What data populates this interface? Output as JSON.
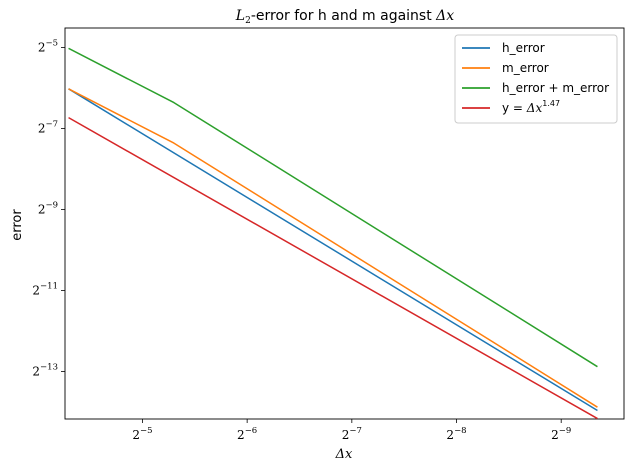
{
  "chart_data": {
    "type": "line",
    "title_prefix": "L",
    "title_sub": "2",
    "title_rest": "-error for h and m against ",
    "title_math": "Δx",
    "xlabel": "Δx",
    "ylabel": "error",
    "x_scale": "log2",
    "y_scale": "log2",
    "x_inverted": true,
    "grid": false,
    "legend_position": "top-right",
    "xlim_log2": [
      -4.26,
      -9.6
    ],
    "ylim_log2": [
      -4.52,
      -14.17
    ],
    "x_ticks": [
      {
        "base": "2",
        "exp": "−5",
        "log2": -5
      },
      {
        "base": "2",
        "exp": "−6",
        "log2": -6
      },
      {
        "base": "2",
        "exp": "−7",
        "log2": -7
      },
      {
        "base": "2",
        "exp": "−8",
        "log2": -8
      },
      {
        "base": "2",
        "exp": "−9",
        "log2": -9
      }
    ],
    "y_ticks": [
      {
        "base": "2",
        "exp": "−5",
        "log2": -5
      },
      {
        "base": "2",
        "exp": "−7",
        "log2": -7
      },
      {
        "base": "2",
        "exp": "−9",
        "log2": -9
      },
      {
        "base": "2",
        "exp": "−11",
        "log2": -11
      },
      {
        "base": "2",
        "exp": "−13",
        "log2": -13
      }
    ],
    "series": [
      {
        "name": "h_error",
        "color": "#1f77b4",
        "x_log2": [
          -4.3,
          -9.34
        ],
        "y_log2": [
          -6.03,
          -13.95
        ]
      },
      {
        "name": "m_error",
        "color": "#ff7f0e",
        "x_log2": [
          -4.3,
          -5.3,
          -9.34
        ],
        "y_log2": [
          -6.03,
          -7.36,
          -13.87
        ]
      },
      {
        "name": "h_error + m_error",
        "color": "#2ca02c",
        "x_log2": [
          -4.3,
          -5.3,
          -9.34
        ],
        "y_log2": [
          -5.03,
          -6.36,
          -12.87
        ]
      },
      {
        "name": "y = ",
        "name_math": "Δx",
        "name_sup": "1.47",
        "color": "#d62728",
        "x_log2": [
          -4.3,
          -9.34
        ],
        "y_log2": [
          -6.74,
          -14.15
        ]
      }
    ]
  }
}
